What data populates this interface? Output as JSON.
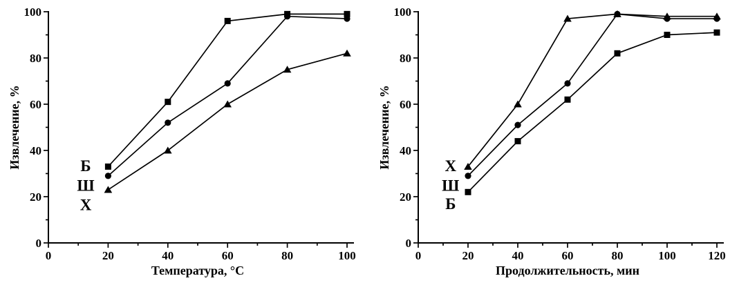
{
  "page": {
    "background_color": "#ffffff",
    "foreground_color": "#000000",
    "description": "Two black-and-white scientific line plots of extraction percentage"
  },
  "chart_data": [
    {
      "id": "left",
      "type": "line",
      "title": "",
      "xlabel": "Температура, °С",
      "ylabel": "Извлечение, %",
      "xlim": [
        0,
        100
      ],
      "ylim": [
        0,
        100
      ],
      "xticks": [
        0,
        20,
        40,
        60,
        80,
        100
      ],
      "yticks": [
        0,
        20,
        40,
        60,
        80,
        100
      ],
      "minor_tick_step_x": 10,
      "minor_tick_step_y": 10,
      "grid": false,
      "legend_position": "inline-left-of-first-points",
      "line_color": "#000000",
      "x": [
        20,
        40,
        60,
        80,
        100
      ],
      "series": [
        {
          "name": "Б",
          "marker": "square",
          "values": [
            33,
            61,
            96,
            99,
            99
          ],
          "label_at": {
            "x": 12.5,
            "y": 33.5
          }
        },
        {
          "name": "Ш",
          "marker": "circle",
          "values": [
            29,
            52,
            69,
            98,
            97
          ],
          "label_at": {
            "x": 12.5,
            "y": 25
          }
        },
        {
          "name": "Х",
          "marker": "triangle",
          "values": [
            23,
            40,
            60,
            75,
            82
          ],
          "label_at": {
            "x": 12.5,
            "y": 16.5
          }
        }
      ]
    },
    {
      "id": "right",
      "type": "line",
      "title": "",
      "xlabel": "Продолжительность, мин",
      "ylabel": "Извлечение, %",
      "xlim": [
        0,
        120
      ],
      "ylim": [
        0,
        100
      ],
      "xticks": [
        0,
        20,
        40,
        60,
        80,
        100,
        120
      ],
      "yticks": [
        0,
        20,
        40,
        60,
        80,
        100
      ],
      "minor_tick_step_x": 10,
      "minor_tick_step_y": 10,
      "grid": false,
      "legend_position": "inline-left-of-first-points",
      "line_color": "#000000",
      "x": [
        20,
        40,
        60,
        80,
        100,
        120
      ],
      "series": [
        {
          "name": "Х",
          "marker": "triangle",
          "values": [
            33,
            60,
            97,
            99,
            98,
            98
          ],
          "label_at": {
            "x": 13,
            "y": 33.5
          }
        },
        {
          "name": "Ш",
          "marker": "circle",
          "values": [
            29,
            51,
            69,
            99,
            97,
            97
          ],
          "label_at": {
            "x": 13,
            "y": 25
          }
        },
        {
          "name": "Б",
          "marker": "square",
          "values": [
            22,
            44,
            62,
            82,
            90,
            91
          ],
          "label_at": {
            "x": 13,
            "y": 17
          }
        }
      ]
    }
  ]
}
